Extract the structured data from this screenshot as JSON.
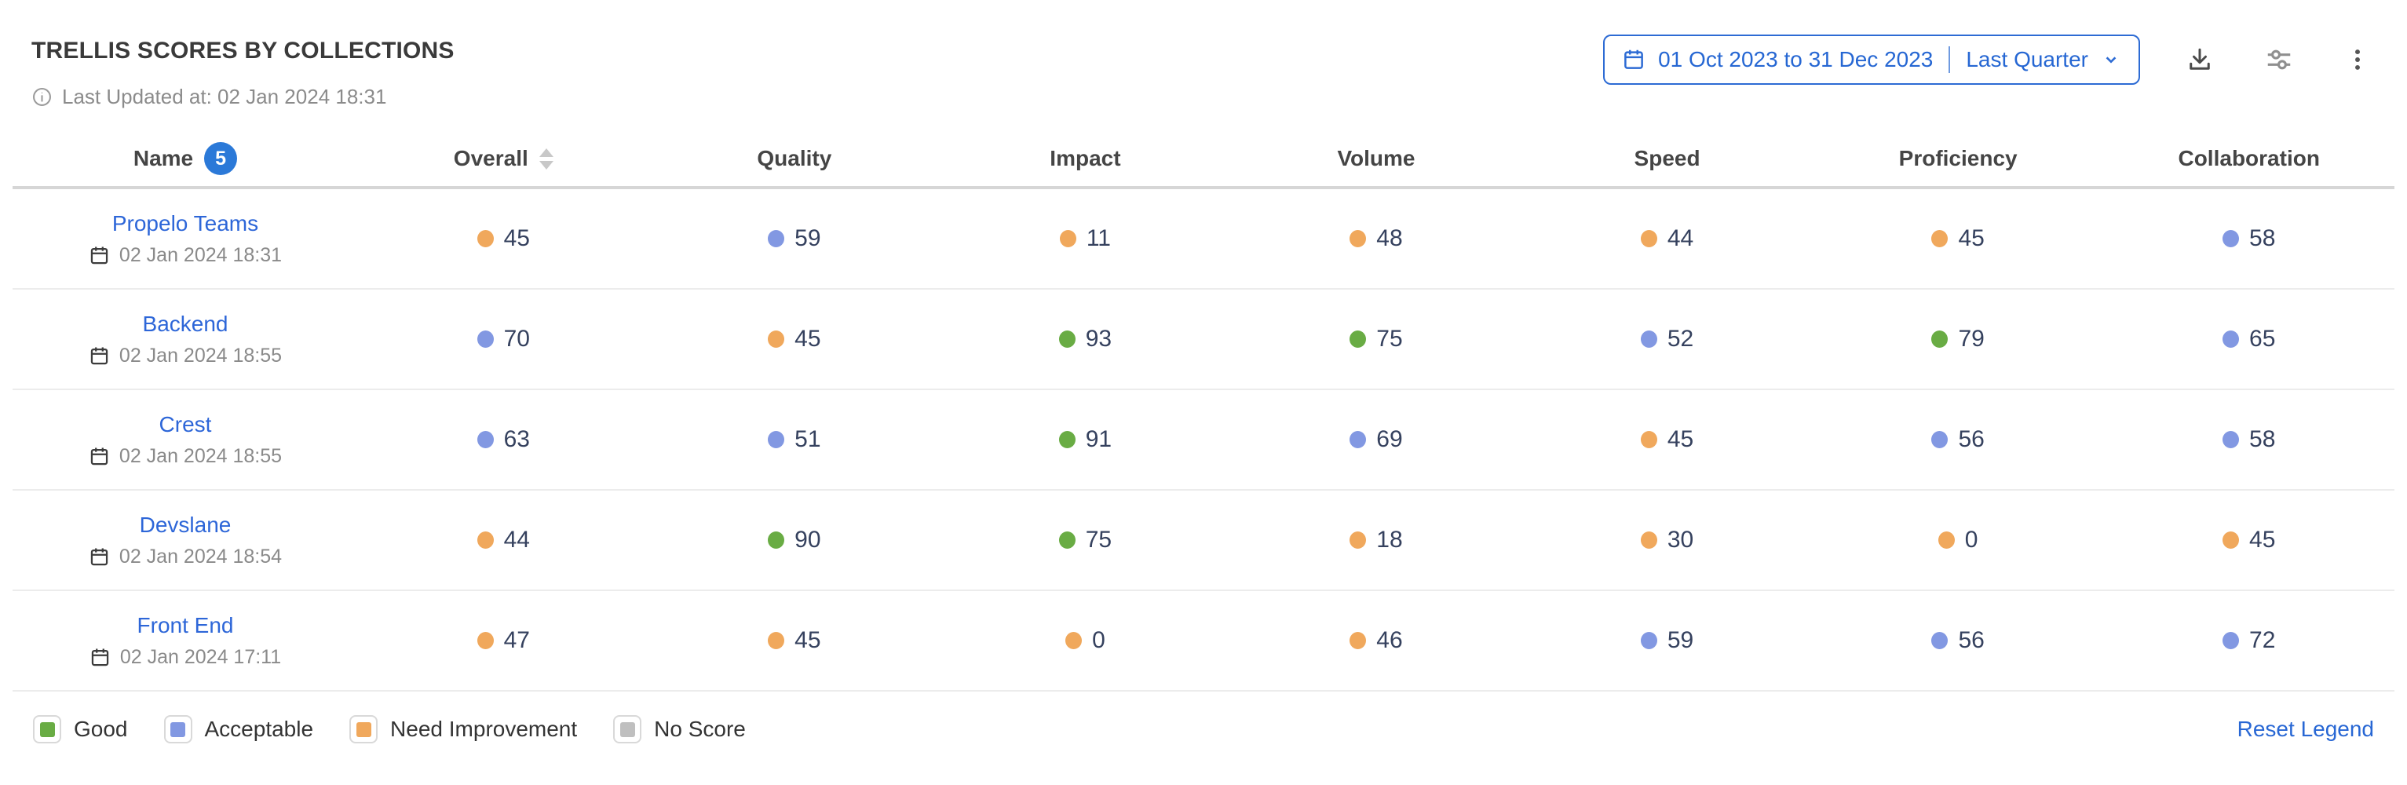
{
  "header": {
    "title": "TRELLIS SCORES BY COLLECTIONS",
    "last_updated": "Last Updated at: 02 Jan 2024 18:31",
    "date_picker": {
      "range": "01 Oct 2023 to 31 Dec 2023",
      "preset": "Last Quarter",
      "calendar_icon": "calendar",
      "chevron_icon": "chevron-down"
    },
    "action_icons": [
      "download",
      "filter-sliders",
      "kebab-menu"
    ]
  },
  "table": {
    "columns": [
      "Name",
      "Overall",
      "Quality",
      "Impact",
      "Volume",
      "Speed",
      "Proficiency",
      "Collaboration"
    ],
    "name_badge_count": "5",
    "rows": [
      {
        "name": "Propelo Teams",
        "date": "02 Jan 2024 18:31",
        "scores": [
          {
            "v": "45",
            "level": "need_improvement"
          },
          {
            "v": "59",
            "level": "acceptable"
          },
          {
            "v": "11",
            "level": "need_improvement"
          },
          {
            "v": "48",
            "level": "need_improvement"
          },
          {
            "v": "44",
            "level": "need_improvement"
          },
          {
            "v": "45",
            "level": "need_improvement"
          },
          {
            "v": "58",
            "level": "acceptable"
          }
        ]
      },
      {
        "name": "Backend",
        "date": "02 Jan 2024 18:55",
        "scores": [
          {
            "v": "70",
            "level": "acceptable"
          },
          {
            "v": "45",
            "level": "need_improvement"
          },
          {
            "v": "93",
            "level": "good"
          },
          {
            "v": "75",
            "level": "good"
          },
          {
            "v": "52",
            "level": "acceptable"
          },
          {
            "v": "79",
            "level": "good"
          },
          {
            "v": "65",
            "level": "acceptable"
          }
        ]
      },
      {
        "name": "Crest",
        "date": "02 Jan 2024 18:55",
        "scores": [
          {
            "v": "63",
            "level": "acceptable"
          },
          {
            "v": "51",
            "level": "acceptable"
          },
          {
            "v": "91",
            "level": "good"
          },
          {
            "v": "69",
            "level": "acceptable"
          },
          {
            "v": "45",
            "level": "need_improvement"
          },
          {
            "v": "56",
            "level": "acceptable"
          },
          {
            "v": "58",
            "level": "acceptable"
          }
        ]
      },
      {
        "name": "Devslane",
        "date": "02 Jan 2024 18:54",
        "scores": [
          {
            "v": "44",
            "level": "need_improvement"
          },
          {
            "v": "90",
            "level": "good"
          },
          {
            "v": "75",
            "level": "good"
          },
          {
            "v": "18",
            "level": "need_improvement"
          },
          {
            "v": "30",
            "level": "need_improvement"
          },
          {
            "v": "0",
            "level": "need_improvement"
          },
          {
            "v": "45",
            "level": "need_improvement"
          }
        ]
      },
      {
        "name": "Front End",
        "date": "02 Jan 2024 17:11",
        "scores": [
          {
            "v": "47",
            "level": "need_improvement"
          },
          {
            "v": "45",
            "level": "need_improvement"
          },
          {
            "v": "0",
            "level": "need_improvement"
          },
          {
            "v": "46",
            "level": "need_improvement"
          },
          {
            "v": "59",
            "level": "acceptable"
          },
          {
            "v": "56",
            "level": "acceptable"
          },
          {
            "v": "72",
            "level": "acceptable"
          }
        ]
      }
    ]
  },
  "legend": {
    "items": [
      {
        "label": "Good",
        "level": "good"
      },
      {
        "label": "Acceptable",
        "level": "acceptable"
      },
      {
        "label": "Need Improvement",
        "level": "need_improvement"
      },
      {
        "label": "No Score",
        "level": "no_score"
      }
    ],
    "reset_label": "Reset Legend"
  },
  "colors": {
    "good": "#69ac44",
    "acceptable": "#8298e2",
    "need_improvement": "#f0a85c",
    "no_score": "#bfbfbf",
    "accent": "#2867d4",
    "link": "#2d66d8"
  }
}
